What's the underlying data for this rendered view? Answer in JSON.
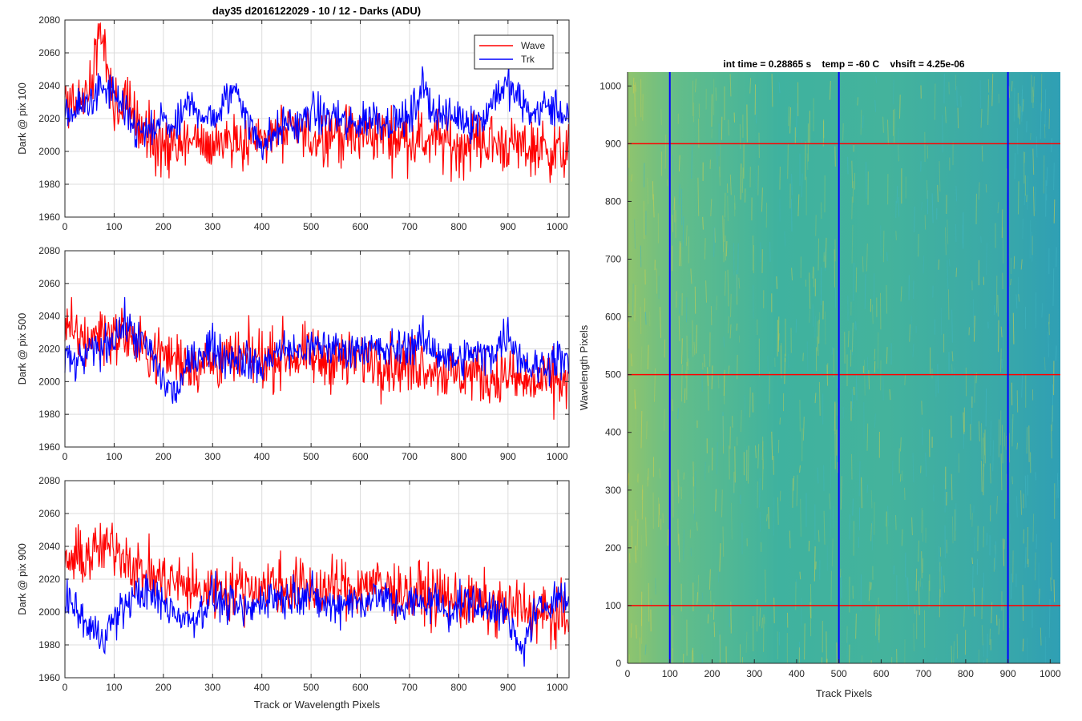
{
  "figure": {
    "title": "day35 d2016122029 - 10 / 12 - Darks (ADU)"
  },
  "chart_data": [
    {
      "type": "line",
      "ylabel": "Dark @ pix 100",
      "xlabel": "",
      "xlim": [
        0,
        1024
      ],
      "ylim": [
        1960,
        2080
      ],
      "xticks": [
        0,
        100,
        200,
        300,
        400,
        500,
        600,
        700,
        800,
        900,
        1000
      ],
      "yticks": [
        1960,
        1980,
        2000,
        2020,
        2040,
        2060,
        2080
      ],
      "grid": true,
      "legend": {
        "placement": "top-right",
        "entries": [
          "Wave",
          "Trk"
        ]
      },
      "series": [
        {
          "name": "Wave",
          "color": "#ff0000",
          "x": [
            0,
            25,
            50,
            72,
            100,
            125,
            150,
            175,
            200,
            225,
            250,
            275,
            300,
            325,
            350,
            375,
            400,
            425,
            450,
            475,
            500,
            525,
            550,
            575,
            600,
            625,
            650,
            675,
            700,
            725,
            750,
            775,
            800,
            825,
            850,
            875,
            900,
            925,
            950,
            975,
            1000,
            1024
          ],
          "y": [
            2030,
            2028,
            2033,
            2076,
            2022,
            2032,
            2015,
            2008,
            2004,
            2000,
            2006,
            2005,
            2004,
            2008,
            2010,
            2005,
            2008,
            2010,
            2011,
            2012,
            2008,
            2010,
            2012,
            2010,
            2009,
            2010,
            2012,
            2008,
            2009,
            2006,
            2008,
            2005,
            2002,
            2008,
            2006,
            2005,
            2004,
            2003,
            2002,
            2002,
            2000,
            1998
          ]
        },
        {
          "name": "Trk",
          "color": "#0000ff",
          "x": [
            0,
            25,
            50,
            75,
            100,
            125,
            150,
            175,
            200,
            225,
            250,
            275,
            300,
            325,
            350,
            375,
            400,
            425,
            450,
            475,
            500,
            525,
            550,
            575,
            600,
            625,
            650,
            675,
            700,
            725,
            750,
            775,
            800,
            825,
            850,
            875,
            900,
            925,
            950,
            975,
            1000,
            1024
          ],
          "y": [
            2022,
            2025,
            2030,
            2038,
            2035,
            2020,
            2012,
            2010,
            2020,
            2012,
            2028,
            2025,
            2018,
            2030,
            2040,
            2015,
            2005,
            2010,
            2018,
            2015,
            2025,
            2020,
            2022,
            2015,
            2018,
            2022,
            2018,
            2020,
            2018,
            2040,
            2025,
            2020,
            2022,
            2018,
            2020,
            2035,
            2040,
            2030,
            2022,
            2028,
            2025,
            2022
          ]
        }
      ]
    },
    {
      "type": "line",
      "ylabel": "Dark @ pix 500",
      "xlabel": "",
      "xlim": [
        0,
        1024
      ],
      "ylim": [
        1960,
        2080
      ],
      "xticks": [
        0,
        100,
        200,
        300,
        400,
        500,
        600,
        700,
        800,
        900,
        1000
      ],
      "yticks": [
        1960,
        1980,
        2000,
        2020,
        2040,
        2060,
        2080
      ],
      "grid": true,
      "series": [
        {
          "name": "Wave",
          "color": "#ff0000",
          "x": [
            0,
            25,
            50,
            75,
            100,
            125,
            150,
            175,
            200,
            225,
            250,
            275,
            300,
            325,
            350,
            375,
            400,
            425,
            450,
            475,
            500,
            525,
            550,
            575,
            600,
            625,
            650,
            675,
            700,
            725,
            750,
            775,
            800,
            825,
            850,
            875,
            900,
            925,
            950,
            975,
            1000,
            1024
          ],
          "y": [
            2030,
            2028,
            2025,
            2032,
            2028,
            2030,
            2020,
            2018,
            2016,
            2015,
            2012,
            2010,
            2012,
            2013,
            2012,
            2015,
            2014,
            2015,
            2016,
            2015,
            2014,
            2013,
            2015,
            2012,
            2014,
            2015,
            2012,
            2010,
            2010,
            2012,
            2008,
            2006,
            2004,
            2006,
            2003,
            2002,
            2004,
            2000,
            1998,
            2000,
            2000,
            1998
          ]
        },
        {
          "name": "Trk",
          "color": "#0000ff",
          "x": [
            0,
            25,
            50,
            75,
            100,
            125,
            150,
            175,
            200,
            225,
            250,
            275,
            300,
            325,
            350,
            375,
            400,
            425,
            450,
            475,
            500,
            525,
            550,
            575,
            600,
            625,
            650,
            675,
            700,
            725,
            750,
            775,
            800,
            825,
            850,
            875,
            900,
            925,
            950,
            975,
            1000,
            1024
          ],
          "y": [
            2015,
            2010,
            2018,
            2020,
            2028,
            2035,
            2025,
            2018,
            2000,
            1992,
            2010,
            2018,
            2022,
            2015,
            2015,
            2012,
            2008,
            2018,
            2020,
            2018,
            2020,
            2022,
            2020,
            2018,
            2022,
            2020,
            2018,
            2020,
            2022,
            2025,
            2020,
            2015,
            2012,
            2018,
            2015,
            2020,
            2030,
            2015,
            2008,
            2010,
            2015,
            2010
          ]
        }
      ]
    },
    {
      "type": "line",
      "ylabel": "Dark @ pix 900",
      "xlabel": "Track or Wavelength Pixels",
      "xlim": [
        0,
        1024
      ],
      "ylim": [
        1960,
        2080
      ],
      "xticks": [
        0,
        100,
        200,
        300,
        400,
        500,
        600,
        700,
        800,
        900,
        1000
      ],
      "yticks": [
        1960,
        1980,
        2000,
        2020,
        2040,
        2060,
        2080
      ],
      "grid": true,
      "series": [
        {
          "name": "Wave",
          "color": "#ff0000",
          "x": [
            0,
            25,
            50,
            75,
            100,
            125,
            150,
            175,
            200,
            225,
            250,
            275,
            300,
            325,
            350,
            375,
            400,
            425,
            450,
            475,
            500,
            525,
            550,
            575,
            600,
            625,
            650,
            675,
            700,
            725,
            750,
            775,
            800,
            825,
            850,
            875,
            900,
            925,
            950,
            975,
            1000,
            1024
          ],
          "y": [
            2030,
            2032,
            2035,
            2038,
            2040,
            2035,
            2025,
            2022,
            2020,
            2018,
            2015,
            2012,
            2014,
            2015,
            2014,
            2016,
            2015,
            2018,
            2015,
            2016,
            2014,
            2013,
            2015,
            2014,
            2016,
            2018,
            2015,
            2014,
            2012,
            2012,
            2010,
            2008,
            2006,
            2005,
            2004,
            2004,
            2002,
            2003,
            2000,
            1998,
            1996,
            1995
          ]
        },
        {
          "name": "Trk",
          "color": "#0000ff",
          "x": [
            0,
            25,
            50,
            75,
            100,
            125,
            150,
            175,
            200,
            225,
            250,
            275,
            300,
            325,
            350,
            375,
            400,
            425,
            450,
            475,
            500,
            525,
            550,
            575,
            600,
            625,
            650,
            675,
            700,
            725,
            750,
            775,
            800,
            825,
            850,
            875,
            900,
            925,
            950,
            975,
            1000,
            1024
          ],
          "y": [
            2010,
            2000,
            1990,
            1985,
            1995,
            2005,
            2012,
            2010,
            2005,
            2000,
            1995,
            2000,
            2010,
            2005,
            2002,
            2000,
            2008,
            2010,
            2008,
            2012,
            2010,
            2005,
            2003,
            2008,
            2005,
            2010,
            2008,
            2003,
            2005,
            2005,
            2008,
            2000,
            2005,
            2008,
            2000,
            2005,
            1995,
            1975,
            1995,
            2005,
            2010,
            2005
          ]
        }
      ]
    },
    {
      "type": "heatmap",
      "title": "int time = 0.28865 s    temp = -60 C    vhsift = 4.25e-06",
      "xlabel": "Track Pixels",
      "ylabel": "Wavelength Pixels",
      "xlim": [
        0,
        1024
      ],
      "ylim": [
        0,
        1024
      ],
      "xticks": [
        0,
        100,
        200,
        300,
        400,
        500,
        600,
        700,
        800,
        900,
        1000
      ],
      "yticks": [
        0,
        100,
        200,
        300,
        400,
        500,
        600,
        700,
        800,
        900,
        1000
      ],
      "grid": false,
      "colormap": [
        "#41b6c4",
        "#5dbf9c",
        "#9cc96a",
        "#d8d04a"
      ],
      "base_color": "#3eae9f",
      "hlines": {
        "color": "#ff0000",
        "values": [
          100,
          500,
          900
        ]
      },
      "vlines": {
        "color": "#0000ff",
        "values": [
          100,
          500,
          900
        ]
      }
    }
  ]
}
